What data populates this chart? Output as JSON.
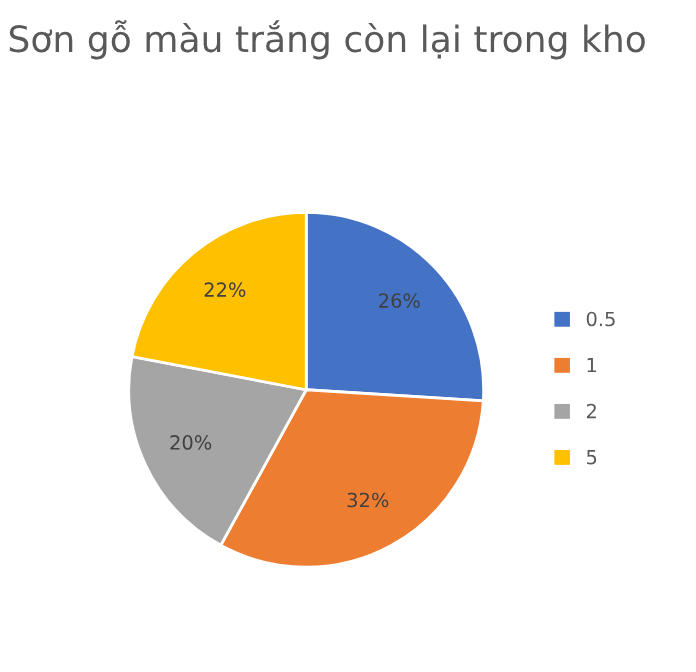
{
  "chart_data": {
    "type": "pie",
    "title": "Sơn gỗ màu trắng còn lại trong kho",
    "categories": [
      "0.5",
      "1",
      "2",
      "5"
    ],
    "values": [
      26,
      32,
      20,
      22
    ],
    "value_labels": [
      "26%",
      "32%",
      "20%",
      "22%"
    ],
    "colors": [
      "#4472c4",
      "#ed7d31",
      "#a5a5a5",
      "#ffc000"
    ],
    "legend": "right"
  }
}
